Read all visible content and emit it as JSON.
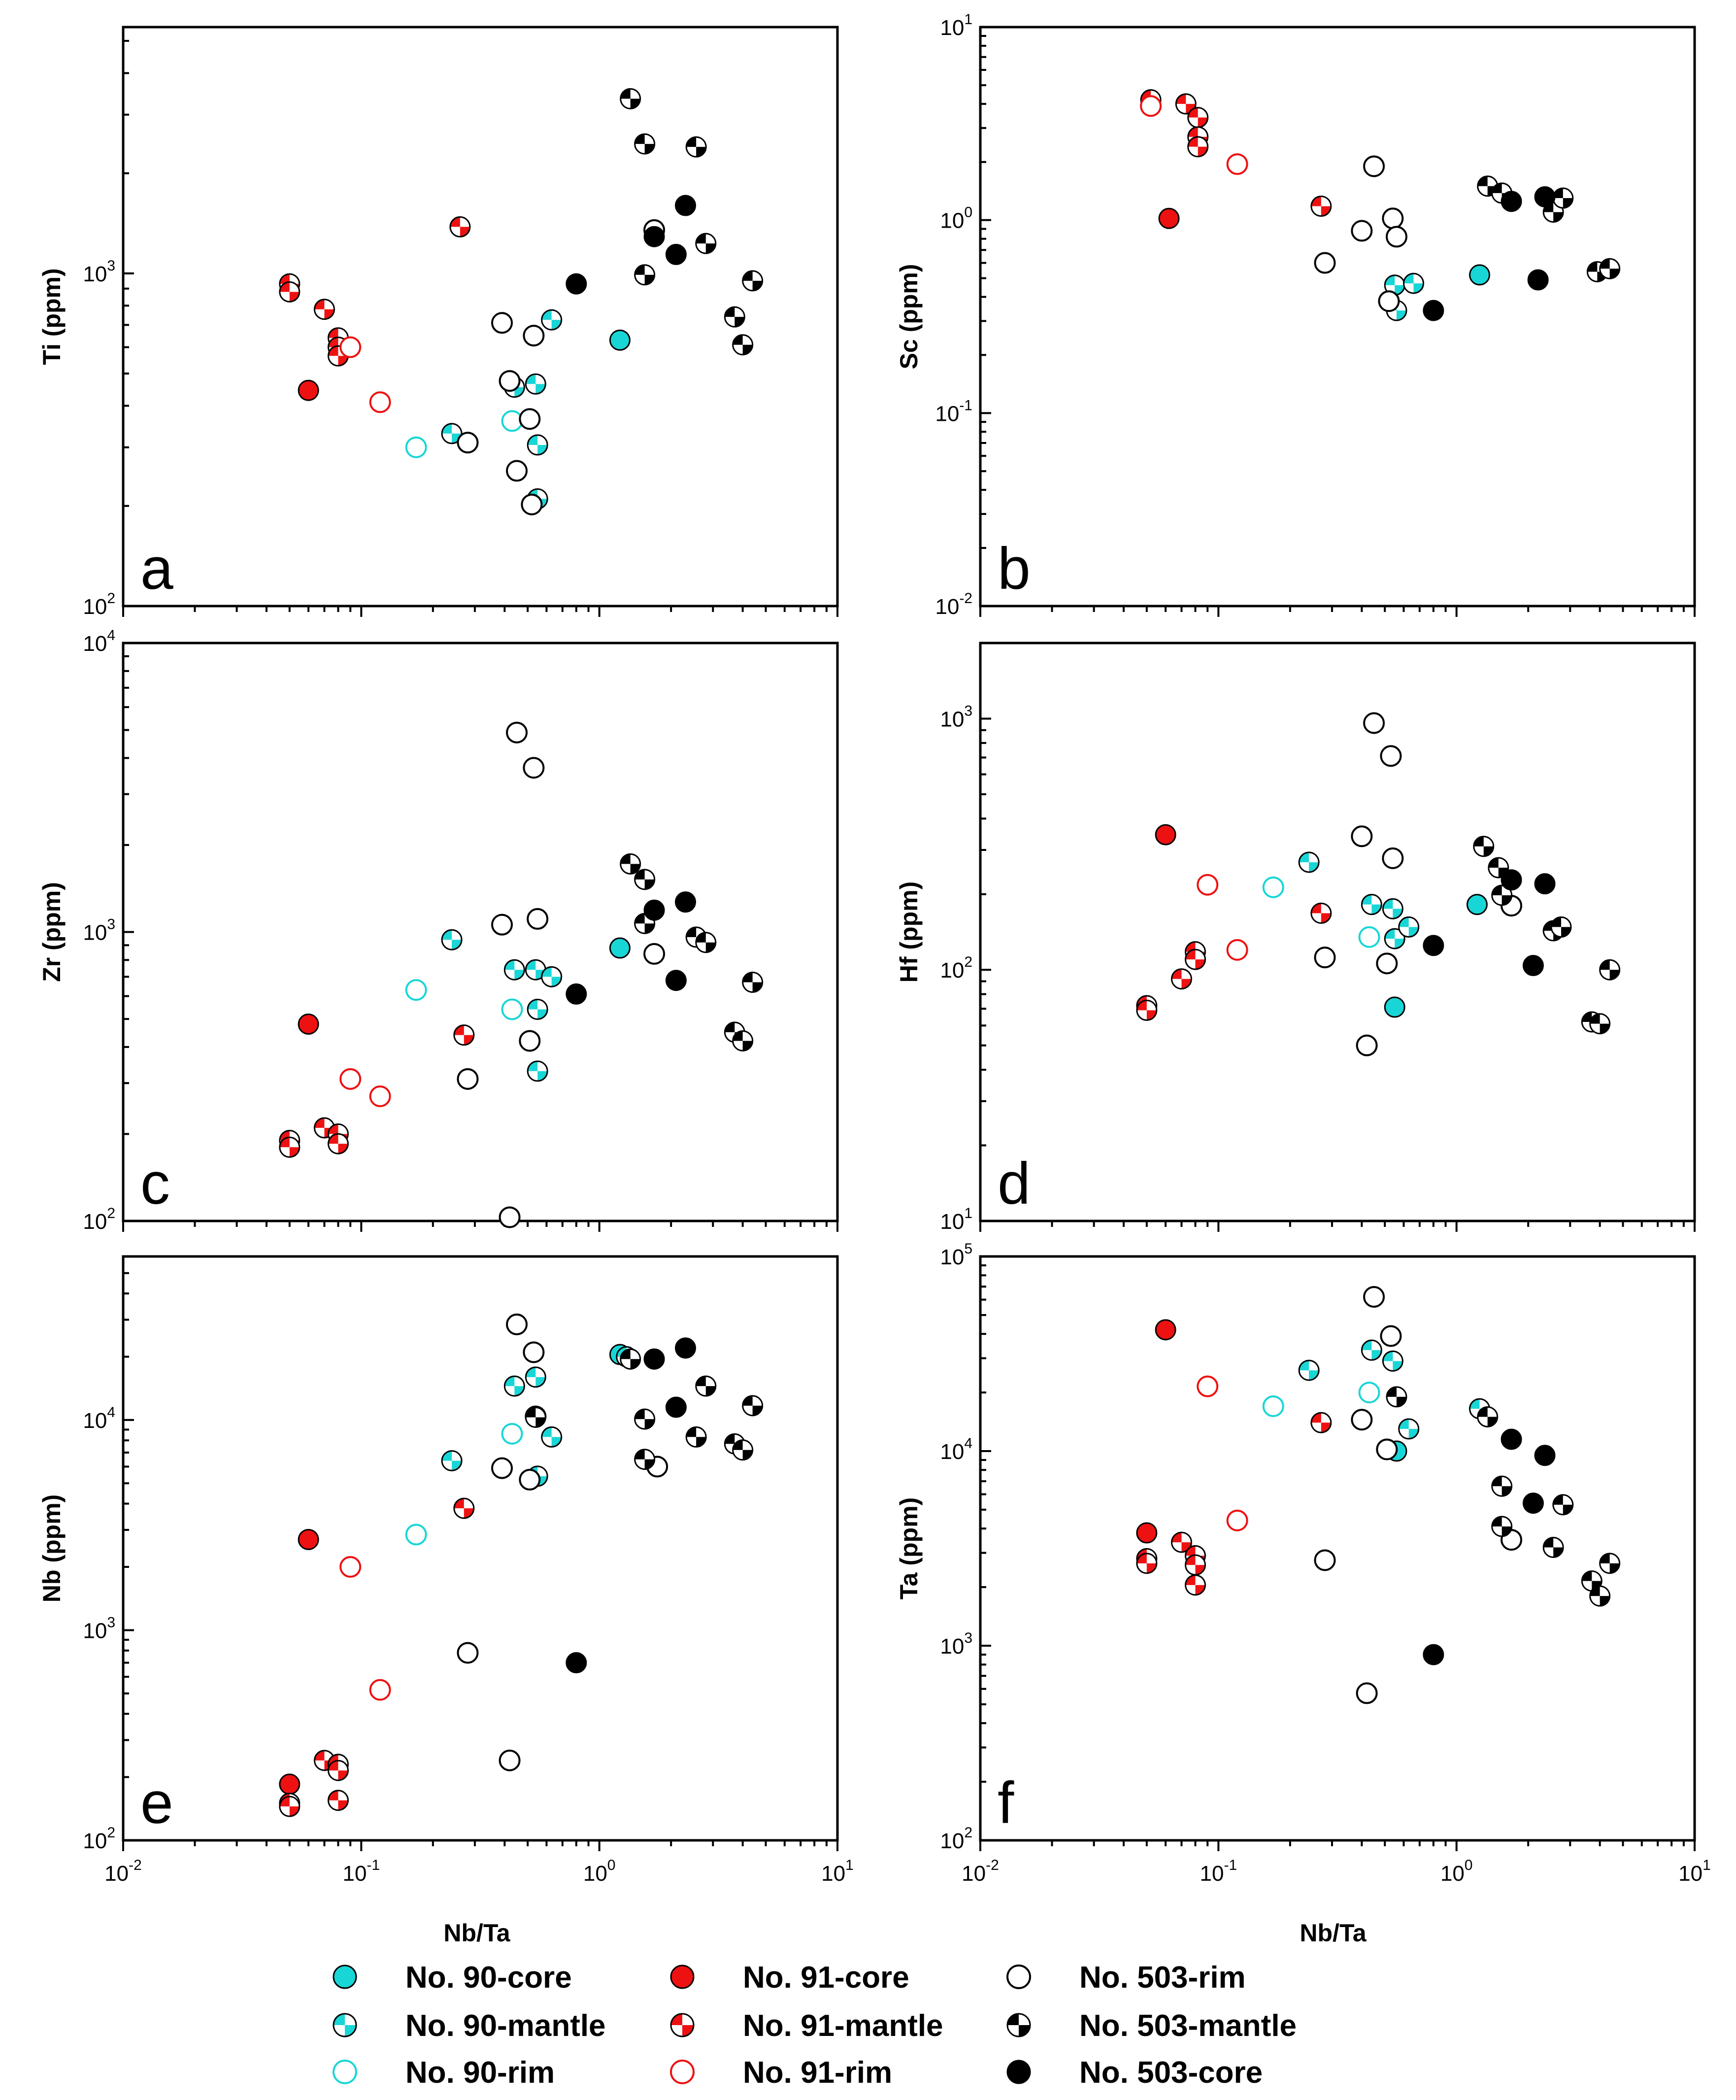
{
  "colors": {
    "cyan": "#19d6d6",
    "red": "#ee1111",
    "black": "#000000"
  },
  "axis": {
    "xlabel": "Nb/Ta",
    "xlim": [
      0.01,
      10
    ]
  },
  "series": [
    {
      "id": "90-core",
      "label": "No. 90-core",
      "color": "#19d6d6",
      "marker": "filled"
    },
    {
      "id": "90-mantle",
      "label": "No. 90-mantle",
      "color": "#19d6d6",
      "marker": "half"
    },
    {
      "id": "90-rim",
      "label": "No. 90-rim",
      "color": "#19d6d6",
      "marker": "open"
    },
    {
      "id": "91-core",
      "label": "No. 91-core",
      "color": "#ee1111",
      "marker": "filled"
    },
    {
      "id": "91-mantle",
      "label": "No. 91-mantle",
      "color": "#ee1111",
      "marker": "half"
    },
    {
      "id": "91-rim",
      "label": "No. 91-rim",
      "color": "#ee1111",
      "marker": "open"
    },
    {
      "id": "503-rim",
      "label": "No. 503-rim",
      "color": "#000000",
      "marker": "open"
    },
    {
      "id": "503-mantle",
      "label": "No. 503-mantle",
      "color": "#000000",
      "marker": "half"
    },
    {
      "id": "503-core",
      "label": "No. 503-core",
      "color": "#000000",
      "marker": "filled"
    }
  ],
  "legend_order": [
    "90-core",
    "91-core",
    "503-rim",
    "90-mantle",
    "91-mantle",
    "503-mantle",
    "90-rim",
    "91-rim",
    "503-core"
  ],
  "chart_data": [
    {
      "type": "scatter",
      "panel": "a",
      "ylabel": "Ti (ppm)",
      "ylim": [
        100,
        5500
      ],
      "yscale": "log",
      "xscale": "log",
      "yticks": [
        {
          "e": 2,
          "v": 100
        },
        {
          "e": 3,
          "v": 1000
        }
      ],
      "xtick_labels": false,
      "points": {
        "90-core": [
          [
            1.22,
            630
          ]
        ],
        "90-mantle": [
          [
            0.24,
            330
          ],
          [
            0.44,
            455
          ],
          [
            0.54,
            465
          ],
          [
            0.55,
            305
          ],
          [
            0.55,
            210
          ],
          [
            0.63,
            725
          ]
        ],
        "90-rim": [
          [
            0.17,
            300
          ],
          [
            0.43,
            360
          ]
        ],
        "91-core": [
          [
            0.06,
            445
          ]
        ],
        "91-mantle": [
          [
            0.05,
            930
          ],
          [
            0.05,
            880
          ],
          [
            0.07,
            780
          ],
          [
            0.08,
            640
          ],
          [
            0.08,
            600
          ],
          [
            0.08,
            565
          ],
          [
            0.26,
            1380
          ]
        ],
        "91-rim": [
          [
            0.09,
            600
          ],
          [
            0.12,
            410
          ]
        ],
        "503-rim": [
          [
            0.28,
            310
          ],
          [
            0.39,
            710
          ],
          [
            0.42,
            475
          ],
          [
            0.45,
            255
          ],
          [
            0.51,
            365
          ],
          [
            0.52,
            202
          ],
          [
            0.53,
            650
          ],
          [
            1.7,
            1350
          ]
        ],
        "503-mantle": [
          [
            1.35,
            3350
          ],
          [
            1.55,
            2450
          ],
          [
            1.55,
            990
          ],
          [
            2.55,
            2400
          ],
          [
            2.8,
            1230
          ],
          [
            3.7,
            740
          ],
          [
            4.0,
            610
          ],
          [
            4.4,
            950
          ]
        ],
        "503-core": [
          [
            0.8,
            930
          ],
          [
            1.7,
            1290
          ],
          [
            2.1,
            1140
          ],
          [
            2.3,
            1600
          ]
        ]
      }
    },
    {
      "type": "scatter",
      "panel": "b",
      "ylabel": "Sc (ppm)",
      "ylim": [
        0.01,
        10
      ],
      "yscale": "log",
      "xscale": "log",
      "yticks": [
        {
          "e": -2,
          "v": 0.01
        },
        {
          "e": -1,
          "v": 0.1
        },
        {
          "e": 0,
          "v": 1
        },
        {
          "e": 1,
          "v": 10
        }
      ],
      "xtick_labels": false,
      "points": {
        "90-core": [
          [
            1.25,
            0.52
          ]
        ],
        "90-mantle": [
          [
            0.55,
            0.46
          ],
          [
            0.56,
            0.34
          ],
          [
            0.66,
            0.47
          ]
        ],
        "90-rim": [],
        "91-core": [
          [
            0.062,
            1.02
          ]
        ],
        "91-mantle": [
          [
            0.052,
            4.2
          ],
          [
            0.073,
            4.0
          ],
          [
            0.082,
            3.4
          ],
          [
            0.082,
            2.7
          ],
          [
            0.082,
            2.4
          ],
          [
            0.27,
            1.18
          ]
        ],
        "91-rim": [
          [
            0.052,
            3.9
          ],
          [
            0.12,
            1.95
          ]
        ],
        "503-rim": [
          [
            0.28,
            0.6
          ],
          [
            0.4,
            0.88
          ],
          [
            0.45,
            1.9
          ],
          [
            0.52,
            0.38
          ],
          [
            0.54,
            1.02
          ],
          [
            0.56,
            0.82
          ]
        ],
        "503-mantle": [
          [
            1.35,
            1.5
          ],
          [
            1.55,
            1.38
          ],
          [
            2.55,
            1.1
          ],
          [
            2.8,
            1.3
          ],
          [
            3.9,
            0.54
          ],
          [
            4.4,
            0.56
          ]
        ],
        "503-core": [
          [
            0.8,
            0.34
          ],
          [
            1.7,
            1.25
          ],
          [
            2.2,
            0.49
          ],
          [
            2.35,
            1.32
          ]
        ]
      }
    },
    {
      "type": "scatter",
      "panel": "c",
      "ylabel": "Zr (ppm)",
      "ylim": [
        100,
        10000
      ],
      "yscale": "log",
      "xscale": "log",
      "yticks": [
        {
          "e": 2,
          "v": 100
        },
        {
          "e": 3,
          "v": 1000
        },
        {
          "e": 4,
          "v": 10000
        }
      ],
      "xtick_labels": false,
      "points": {
        "90-core": [
          [
            1.22,
            880
          ]
        ],
        "90-mantle": [
          [
            0.24,
            940
          ],
          [
            0.44,
            740
          ],
          [
            0.54,
            740
          ],
          [
            0.55,
            540
          ],
          [
            0.55,
            330
          ],
          [
            0.63,
            700
          ]
        ],
        "90-rim": [
          [
            0.17,
            630
          ],
          [
            0.43,
            540
          ]
        ],
        "91-core": [
          [
            0.06,
            480
          ]
        ],
        "91-mantle": [
          [
            0.05,
            190
          ],
          [
            0.05,
            180
          ],
          [
            0.07,
            210
          ],
          [
            0.08,
            200
          ],
          [
            0.08,
            185
          ],
          [
            0.27,
            440
          ]
        ],
        "91-rim": [
          [
            0.09,
            310
          ],
          [
            0.12,
            270
          ]
        ],
        "503-rim": [
          [
            0.28,
            310
          ],
          [
            0.39,
            1060
          ],
          [
            0.42,
            103
          ],
          [
            0.45,
            4900
          ],
          [
            0.51,
            420
          ],
          [
            0.53,
            3700
          ],
          [
            0.55,
            1110
          ],
          [
            1.7,
            840
          ]
        ],
        "503-mantle": [
          [
            1.35,
            1720
          ],
          [
            1.55,
            1520
          ],
          [
            1.55,
            1070
          ],
          [
            2.55,
            960
          ],
          [
            2.8,
            920
          ],
          [
            3.7,
            450
          ],
          [
            4.0,
            420
          ],
          [
            4.4,
            670
          ]
        ],
        "503-core": [
          [
            0.8,
            610
          ],
          [
            1.7,
            1190
          ],
          [
            2.1,
            680
          ],
          [
            2.3,
            1270
          ]
        ]
      }
    },
    {
      "type": "scatter",
      "panel": "d",
      "ylabel": "Hf (ppm)",
      "ylim": [
        10,
        2000
      ],
      "yscale": "log",
      "xscale": "log",
      "yticks": [
        {
          "e": 1,
          "v": 10
        },
        {
          "e": 2,
          "v": 100
        },
        {
          "e": 3,
          "v": 1000
        }
      ],
      "xtick_labels": false,
      "points": {
        "90-core": [
          [
            1.22,
            182
          ],
          [
            0.55,
            71
          ]
        ],
        "90-mantle": [
          [
            0.24,
            268
          ],
          [
            0.44,
            182
          ],
          [
            0.54,
            175
          ],
          [
            0.55,
            133
          ],
          [
            0.63,
            148
          ]
        ],
        "90-rim": [
          [
            0.17,
            213
          ],
          [
            0.43,
            135
          ]
        ],
        "91-core": [
          [
            0.06,
            345
          ]
        ],
        "91-mantle": [
          [
            0.05,
            72
          ],
          [
            0.05,
            69
          ],
          [
            0.07,
            92
          ],
          [
            0.08,
            118
          ],
          [
            0.08,
            110
          ],
          [
            0.27,
            168
          ]
        ],
        "91-rim": [
          [
            0.09,
            218
          ],
          [
            0.12,
            120
          ]
        ],
        "503-rim": [
          [
            0.28,
            112
          ],
          [
            0.4,
            340
          ],
          [
            0.42,
            50
          ],
          [
            0.45,
            960
          ],
          [
            0.51,
            106
          ],
          [
            0.53,
            710
          ],
          [
            0.54,
            278
          ],
          [
            1.7,
            180
          ]
        ],
        "503-mantle": [
          [
            1.3,
            310
          ],
          [
            1.5,
            255
          ],
          [
            1.55,
            198
          ],
          [
            2.55,
            143
          ],
          [
            2.75,
            148
          ],
          [
            3.7,
            62
          ],
          [
            4.0,
            61
          ],
          [
            4.4,
            100
          ]
        ],
        "503-core": [
          [
            0.8,
            125
          ],
          [
            1.7,
            228
          ],
          [
            2.1,
            104
          ],
          [
            2.35,
            220
          ]
        ]
      }
    },
    {
      "type": "scatter",
      "panel": "e",
      "ylabel": "Nb (ppm)",
      "ylim": [
        100,
        60000
      ],
      "yscale": "log",
      "xscale": "log",
      "yticks": [
        {
          "e": 2,
          "v": 100
        },
        {
          "e": 3,
          "v": 1000
        },
        {
          "e": 4,
          "v": 10000
        }
      ],
      "xtick_labels": true,
      "xticks": [
        {
          "e": -2,
          "v": 0.01
        },
        {
          "e": -1,
          "v": 0.1
        },
        {
          "e": 0,
          "v": 1
        },
        {
          "e": 1,
          "v": 10
        }
      ],
      "points": {
        "90-core": [
          [
            1.22,
            20500
          ]
        ],
        "90-mantle": [
          [
            0.24,
            6400
          ],
          [
            0.44,
            14500
          ],
          [
            0.54,
            16000
          ],
          [
            0.55,
            5400
          ],
          [
            0.63,
            8300
          ],
          [
            1.3,
            20000
          ]
        ],
        "90-rim": [
          [
            0.17,
            2850
          ],
          [
            0.43,
            8600
          ]
        ],
        "91-core": [
          [
            0.06,
            2700
          ],
          [
            0.05,
            185
          ]
        ],
        "91-mantle": [
          [
            0.05,
            150
          ],
          [
            0.05,
            145
          ],
          [
            0.07,
            240
          ],
          [
            0.08,
            230
          ],
          [
            0.08,
            215
          ],
          [
            0.08,
            155
          ],
          [
            0.27,
            3800
          ]
        ],
        "91-rim": [
          [
            0.09,
            2000
          ],
          [
            0.12,
            520
          ]
        ],
        "503-rim": [
          [
            0.28,
            780
          ],
          [
            0.39,
            5900
          ],
          [
            0.42,
            240
          ],
          [
            0.45,
            28500
          ],
          [
            0.51,
            5200
          ],
          [
            0.53,
            21000
          ],
          [
            0.54,
            10400
          ],
          [
            1.75,
            6000
          ]
        ],
        "503-mantle": [
          [
            0.54,
            10300
          ],
          [
            1.35,
            19500
          ],
          [
            1.55,
            10100
          ],
          [
            1.55,
            6500
          ],
          [
            2.55,
            8300
          ],
          [
            2.8,
            14500
          ],
          [
            3.7,
            7700
          ],
          [
            4.0,
            7200
          ],
          [
            4.4,
            11700
          ]
        ],
        "503-core": [
          [
            0.8,
            700
          ],
          [
            1.7,
            19500
          ],
          [
            2.1,
            11500
          ],
          [
            2.3,
            22000
          ]
        ]
      }
    },
    {
      "type": "scatter",
      "panel": "f",
      "ylabel": "Ta (ppm)",
      "ylim": [
        100,
        100000
      ],
      "yscale": "log",
      "xscale": "log",
      "yticks": [
        {
          "e": 2,
          "v": 100
        },
        {
          "e": 3,
          "v": 1000
        },
        {
          "e": 4,
          "v": 10000
        },
        {
          "e": 5,
          "v": 100000
        }
      ],
      "xtick_labels": true,
      "xticks": [
        {
          "e": -2,
          "v": 0.01
        },
        {
          "e": -1,
          "v": 0.1
        },
        {
          "e": 0,
          "v": 1
        },
        {
          "e": 1,
          "v": 10
        }
      ],
      "points": {
        "90-core": [
          [
            0.56,
            10000
          ]
        ],
        "90-mantle": [
          [
            0.24,
            26000
          ],
          [
            0.44,
            33000
          ],
          [
            0.54,
            29000
          ],
          [
            0.63,
            13000
          ],
          [
            1.25,
            16500
          ]
        ],
        "90-rim": [
          [
            0.17,
            17000
          ],
          [
            0.43,
            20000
          ]
        ],
        "91-core": [
          [
            0.06,
            42000
          ],
          [
            0.05,
            3800
          ]
        ],
        "91-mantle": [
          [
            0.05,
            2800
          ],
          [
            0.05,
            2650
          ],
          [
            0.07,
            3400
          ],
          [
            0.08,
            2900
          ],
          [
            0.08,
            2600
          ],
          [
            0.08,
            2050
          ],
          [
            0.27,
            14000
          ]
        ],
        "91-rim": [
          [
            0.09,
            21500
          ],
          [
            0.12,
            4400
          ]
        ],
        "503-rim": [
          [
            0.28,
            2750
          ],
          [
            0.4,
            14500
          ],
          [
            0.42,
            570
          ],
          [
            0.45,
            62000
          ],
          [
            0.51,
            10200
          ],
          [
            0.53,
            39000
          ],
          [
            1.7,
            3500
          ]
        ],
        "503-mantle": [
          [
            0.56,
            19000
          ],
          [
            1.35,
            15000
          ],
          [
            1.55,
            6600
          ],
          [
            1.55,
            4100
          ],
          [
            2.55,
            3200
          ],
          [
            2.8,
            5300
          ],
          [
            3.7,
            2150
          ],
          [
            4.0,
            1800
          ],
          [
            4.4,
            2650
          ]
        ],
        "503-core": [
          [
            0.8,
            900
          ],
          [
            1.7,
            11500
          ],
          [
            2.1,
            5400
          ],
          [
            2.35,
            9500
          ]
        ]
      }
    }
  ]
}
